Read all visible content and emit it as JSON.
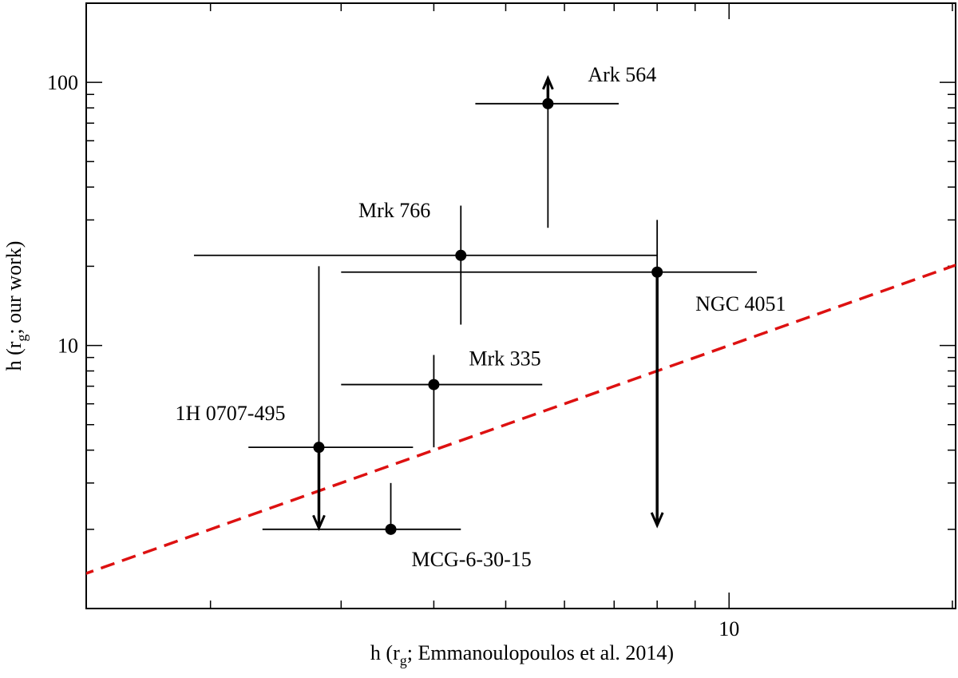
{
  "chart_data": {
    "type": "scatter",
    "xlabel": "h (r_g; Emmanoulopoulos et al. 2014)",
    "ylabel": "h (r_g; our work)",
    "xlabel_parts": [
      "h (r",
      "g",
      "; Emmanoulopoulos et al. 2014)"
    ],
    "ylabel_parts": [
      "h (r",
      "g",
      "; our work)"
    ],
    "xscale": "log",
    "yscale": "log",
    "xlim": [
      1.36,
      20.2
    ],
    "ylim": [
      1,
      200
    ],
    "x_ticks": [
      {
        "value": 10,
        "label": "10"
      }
    ],
    "y_ticks": [
      {
        "value": 10,
        "label": "10"
      },
      {
        "value": 100,
        "label": "100"
      }
    ],
    "x_minor_ticks": [
      2,
      3,
      4,
      5,
      6,
      7,
      8,
      9,
      20
    ],
    "y_minor_ticks": [
      2,
      3,
      4,
      5,
      6,
      7,
      8,
      9,
      20,
      30,
      40,
      50,
      60,
      70,
      80,
      90,
      200
    ],
    "grid": false,
    "points": [
      {
        "name": "Ark 564",
        "x": 5.7,
        "y": 83,
        "xerr": [
          4.55,
          7.1
        ],
        "yerr": [
          28,
          83
        ],
        "arrow": "up"
      },
      {
        "name": "Mrk 766",
        "x": 4.35,
        "y": 22,
        "xerr": [
          1.9,
          8.0
        ],
        "yerr": [
          12,
          34
        ],
        "arrow": null
      },
      {
        "name": "NGC 4051",
        "x": 8.0,
        "y": 19,
        "xerr": [
          3.0,
          10.9
        ],
        "yerr": [
          2.1,
          30
        ],
        "arrow": "down"
      },
      {
        "name": "Mrk 335",
        "x": 4.0,
        "y": 7.1,
        "xerr": [
          3.0,
          5.6
        ],
        "yerr": [
          4.1,
          9.2
        ],
        "arrow": null
      },
      {
        "name": "1H 0707-495",
        "x": 2.8,
        "y": 4.1,
        "xerr": [
          2.25,
          3.75
        ],
        "yerr": [
          2.05,
          20
        ],
        "arrow": "down"
      },
      {
        "name": "MCG-6-30-15",
        "x": 3.5,
        "y": 2.0,
        "xerr": [
          2.35,
          4.35
        ],
        "yerr": [
          2.0,
          3.0
        ],
        "arrow": null
      }
    ],
    "reference_line": {
      "style": "dashed",
      "color": "#dd1111",
      "description": "y = x"
    }
  }
}
